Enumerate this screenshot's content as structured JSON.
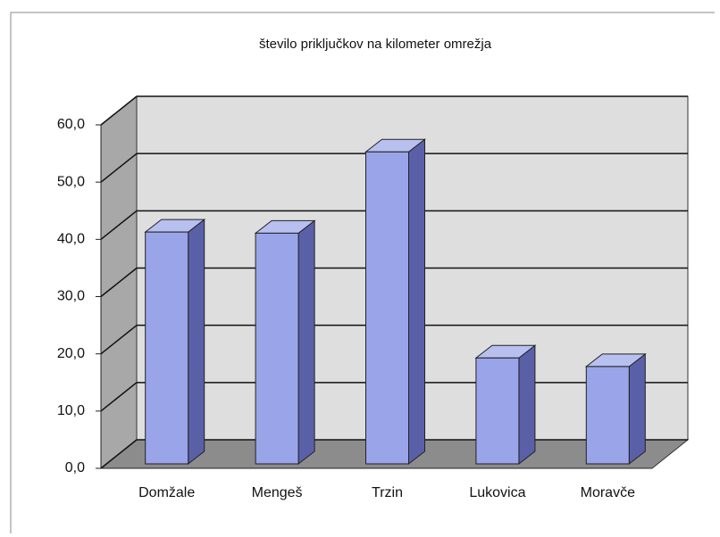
{
  "chart_data": {
    "type": "bar3d",
    "title": "število priključkov na kilometer omrežja",
    "categories": [
      "Domžale",
      "Mengeš",
      "Trzin",
      "Lukovica",
      "Moravče"
    ],
    "values": [
      40.5,
      40.3,
      54.5,
      18.5,
      17.0
    ],
    "color": "#9aa4e8",
    "ylim": [
      0,
      60
    ],
    "yticks": [
      {
        "value": 0,
        "label": "0,0"
      },
      {
        "value": 10,
        "label": "10,0"
      },
      {
        "value": 20,
        "label": "20,0"
      },
      {
        "value": 30,
        "label": "30,0"
      },
      {
        "value": 40,
        "label": "40,0"
      },
      {
        "value": 50,
        "label": "50,0"
      },
      {
        "value": 60,
        "label": "60,0"
      }
    ],
    "grid": true
  }
}
